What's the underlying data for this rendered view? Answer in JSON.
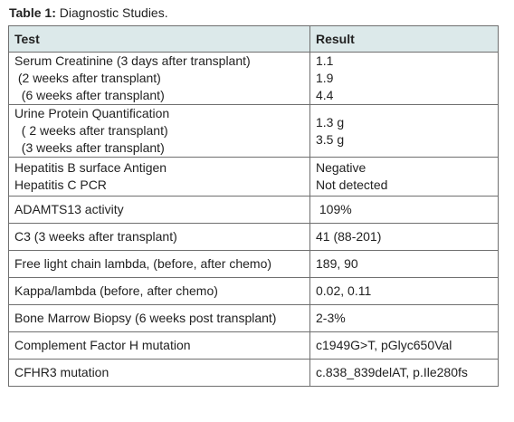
{
  "caption": {
    "label": "Table 1:",
    "text": " Diagnostic Studies."
  },
  "table": {
    "headers": {
      "test": "Test",
      "result": "Result"
    },
    "rows": [
      {
        "test": [
          "Serum Creatinine (3 days after transplant)",
          " (2 weeks after transplant)",
          "  (6 weeks after transplant)"
        ],
        "result": [
          "1.1",
          "1.9",
          "4.4"
        ]
      },
      {
        "test": [
          "Urine Protein Quantification",
          "  ( 2 weeks after transplant)",
          "  (3 weeks after transplant)"
        ],
        "result": [
          "1.3 g",
          "3.5 g"
        ]
      },
      {
        "test": [
          "Hepatitis B surface Antigen",
          "Hepatitis C PCR"
        ],
        "result": [
          "Negative",
          "Not detected"
        ]
      },
      {
        "test": [
          "ADAMTS13 activity"
        ],
        "result": [
          " 109%"
        ]
      },
      {
        "test": [
          "C3 (3 weeks after transplant)"
        ],
        "result": [
          "41 (88-201)"
        ]
      },
      {
        "test": [
          "Free light chain lambda, (before, after chemo)"
        ],
        "result": [
          "189, 90"
        ]
      },
      {
        "test": [
          "Kappa/lambda (before, after  chemo)"
        ],
        "result": [
          "0.02, 0.11"
        ]
      },
      {
        "test": [
          "Bone Marrow Biopsy (6 weeks post transplant)"
        ],
        "result": [
          "2-3%"
        ]
      },
      {
        "test": [
          "Complement Factor H mutation"
        ],
        "result": [
          "c1949G>T, pGlyc650Val"
        ]
      },
      {
        "test": [
          "CFHR3 mutation"
        ],
        "result": [
          "c.838_839delAT, p.Ile280fs"
        ]
      }
    ]
  }
}
